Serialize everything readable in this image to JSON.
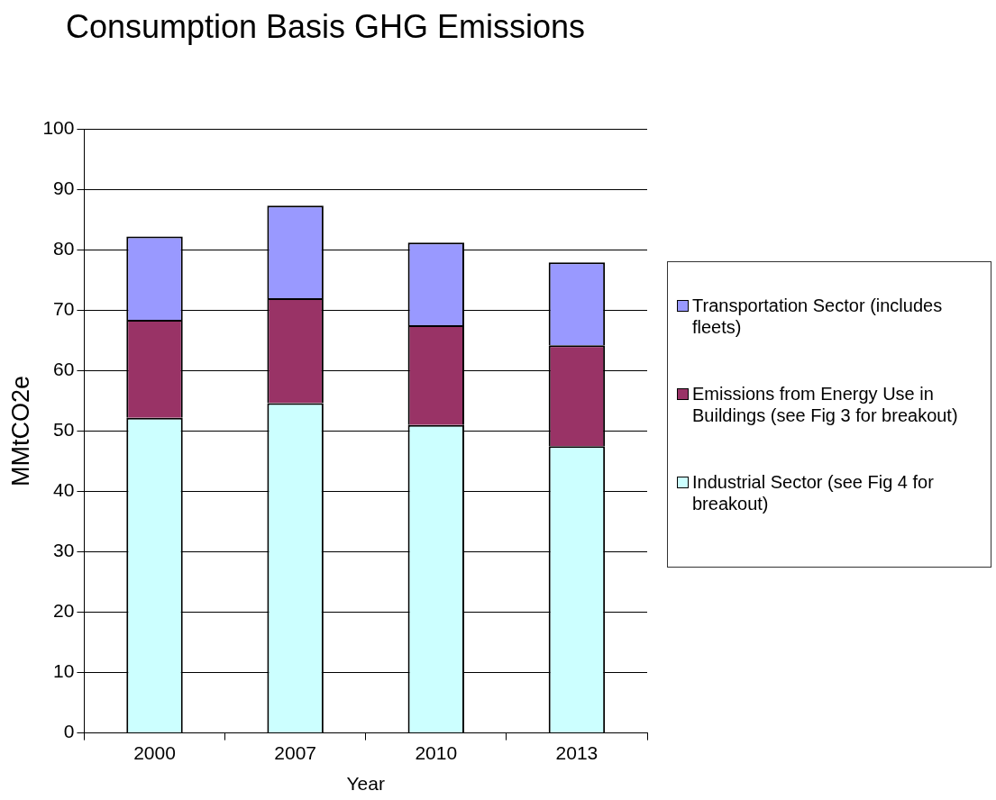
{
  "chart_data": {
    "type": "bar",
    "title": "Consumption Basis GHG Emissions",
    "xlabel": "Year",
    "ylabel": "MMtCO2e",
    "categories": [
      "2000",
      "2007",
      "2010",
      "2013"
    ],
    "stacked": true,
    "series": [
      {
        "name": "Industrial Sector (see Fig 4 for breakout)",
        "color": "#ccffff",
        "values": [
          52.2,
          54.6,
          51.0,
          47.5
        ]
      },
      {
        "name": "Emissions from Energy Use in Buildings (see Fig 3 for breakout)",
        "color": "#993366",
        "values": [
          16.2,
          17.4,
          16.5,
          16.7
        ]
      },
      {
        "name": "Transportation Sector (includes fleets)",
        "color": "#9999ff",
        "values": [
          13.8,
          15.3,
          13.7,
          13.7
        ]
      }
    ],
    "ylim": [
      0,
      100
    ],
    "yticks": [
      0,
      10,
      20,
      30,
      40,
      50,
      60,
      70,
      80,
      90,
      100
    ],
    "grid": "y",
    "legend": "right"
  }
}
